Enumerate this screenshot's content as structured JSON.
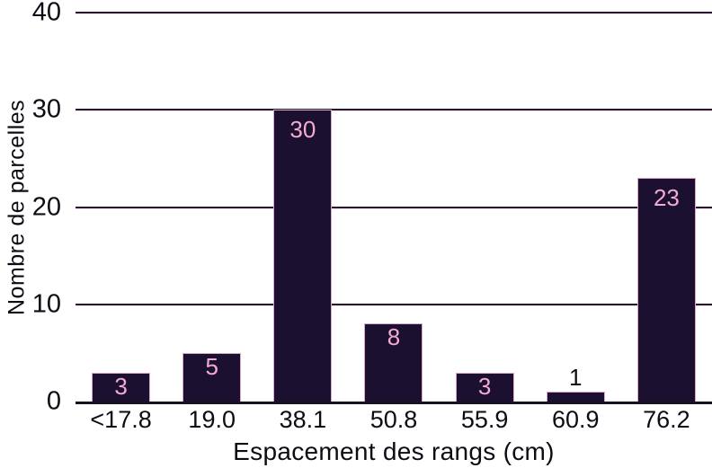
{
  "chart_data": {
    "type": "bar",
    "title": "",
    "xlabel": "Espacement des rangs (cm)",
    "ylabel": "Nombre de parcelles",
    "categories": [
      "<17.8",
      "19.0",
      "38.1",
      "50.8",
      "55.9",
      "60.9",
      "76.2"
    ],
    "values": [
      3,
      5,
      30,
      8,
      3,
      1,
      23
    ],
    "bar_labels": [
      "3",
      "5",
      "30",
      "8",
      "3",
      "1",
      "23"
    ],
    "ylim": [
      0,
      40
    ],
    "yticks": [
      0,
      10,
      20,
      30,
      40
    ],
    "grid": "horizontal",
    "legend": "none",
    "label_placement_rule": "inside bar near top; outside above bar when value < 2",
    "colors": {
      "bar_fill": "#1c1030",
      "bar_outline": "#f2b9da",
      "label_inside": "#f2abd2",
      "label_outside": "#0c0c14",
      "axis_text": "#0c0c14",
      "gridline": "#241a30",
      "background": "#ffffff"
    }
  }
}
